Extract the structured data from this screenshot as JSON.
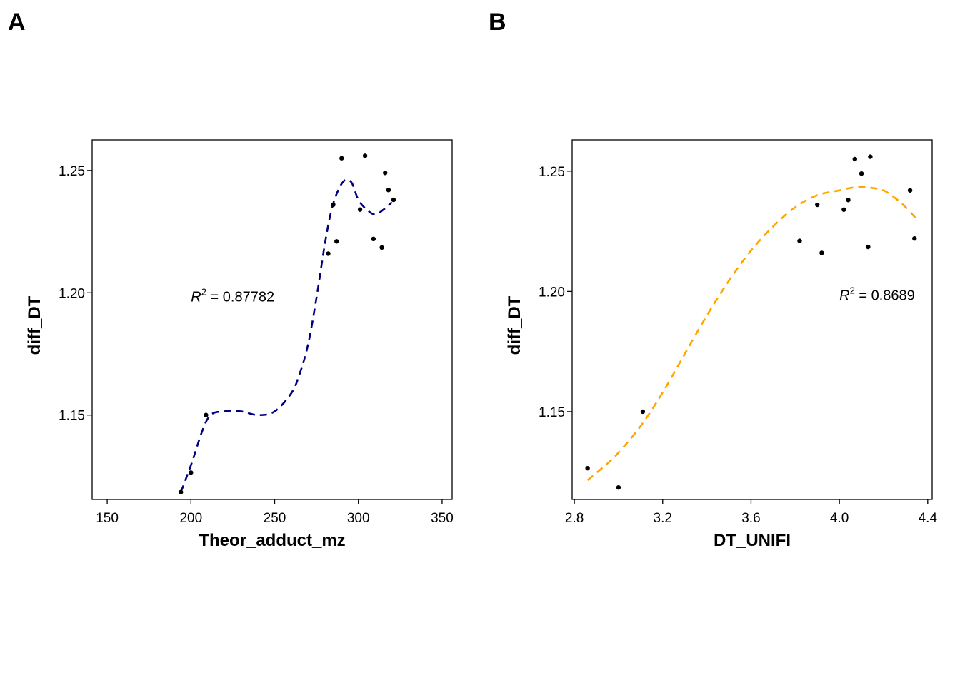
{
  "chart_data": [
    {
      "panel_label": "A",
      "type": "scatter",
      "xlabel": "Theor_adduct_mz",
      "ylabel": "diff_DT",
      "xlim": [
        141,
        356
      ],
      "ylim": [
        1.1155,
        1.2625
      ],
      "xticks": [
        150,
        200,
        250,
        300,
        350
      ],
      "xtick_labels": [
        "150",
        "200",
        "250",
        "300",
        "350"
      ],
      "yticks": [
        1.15,
        1.2,
        1.25
      ],
      "ytick_labels": [
        "1.15",
        "1.20",
        "1.25"
      ],
      "grid": false,
      "points": {
        "x": [
          194,
          200,
          209,
          282,
          285,
          287,
          290,
          301,
          304,
          309,
          314,
          316,
          318,
          321
        ],
        "y": [
          1.1185,
          1.1265,
          1.15,
          1.216,
          1.236,
          1.221,
          1.255,
          1.234,
          1.256,
          1.222,
          1.2185,
          1.249,
          1.242,
          1.238
        ]
      },
      "fit": {
        "style": "dashed",
        "color": "#00007f",
        "x": [
          194,
          200,
          210,
          220,
          230,
          240,
          250,
          260,
          265,
          270,
          275,
          280,
          284,
          288,
          292,
          296,
          300,
          305,
          310,
          315,
          320
        ],
        "y": [
          1.1185,
          1.1295,
          1.1485,
          1.1515,
          1.1515,
          1.15,
          1.1515,
          1.159,
          1.167,
          1.179,
          1.198,
          1.22,
          1.234,
          1.242,
          1.246,
          1.245,
          1.238,
          1.234,
          1.232,
          1.234,
          1.237
        ]
      },
      "annotation": {
        "label": "R",
        "sup": "2",
        "text": " = 0.87782",
        "x": 200,
        "y": 1.1985
      }
    },
    {
      "panel_label": "B",
      "type": "scatter",
      "xlabel": "DT_UNIFI",
      "ylabel": "diff_DT",
      "xlim": [
        2.79,
        4.42
      ],
      "ylim": [
        1.1135,
        1.263
      ],
      "xticks": [
        2.8,
        3.2,
        3.6,
        4.0,
        4.4
      ],
      "xtick_labels": [
        "2.8",
        "3.2",
        "3.6",
        "4.0",
        "4.4"
      ],
      "yticks": [
        1.15,
        1.2,
        1.25
      ],
      "ytick_labels": [
        "1.15",
        "1.20",
        "1.25"
      ],
      "grid": false,
      "points": {
        "x": [
          2.86,
          3.0,
          3.11,
          3.82,
          3.9,
          3.92,
          4.02,
          4.04,
          4.07,
          4.1,
          4.13,
          4.14,
          4.32,
          4.34
        ],
        "y": [
          1.1265,
          1.1185,
          1.15,
          1.221,
          1.236,
          1.216,
          1.234,
          1.238,
          1.255,
          1.249,
          1.2185,
          1.256,
          1.242,
          1.222
        ]
      },
      "fit": {
        "style": "dashed",
        "color": "#ffa500",
        "x": [
          2.86,
          2.95,
          3.0,
          3.1,
          3.2,
          3.3,
          3.4,
          3.5,
          3.6,
          3.7,
          3.8,
          3.9,
          4.0,
          4.05,
          4.1,
          4.15,
          4.2,
          4.25,
          4.3,
          4.35
        ],
        "y": [
          1.1215,
          1.1285,
          1.133,
          1.144,
          1.158,
          1.174,
          1.19,
          1.2045,
          1.217,
          1.227,
          1.235,
          1.24,
          1.242,
          1.243,
          1.2435,
          1.243,
          1.242,
          1.239,
          1.235,
          1.23
        ]
      },
      "annotation": {
        "label": "R",
        "sup": "2",
        "text": " = 0.8689",
        "x": 4.0,
        "y": 1.1985
      }
    }
  ]
}
